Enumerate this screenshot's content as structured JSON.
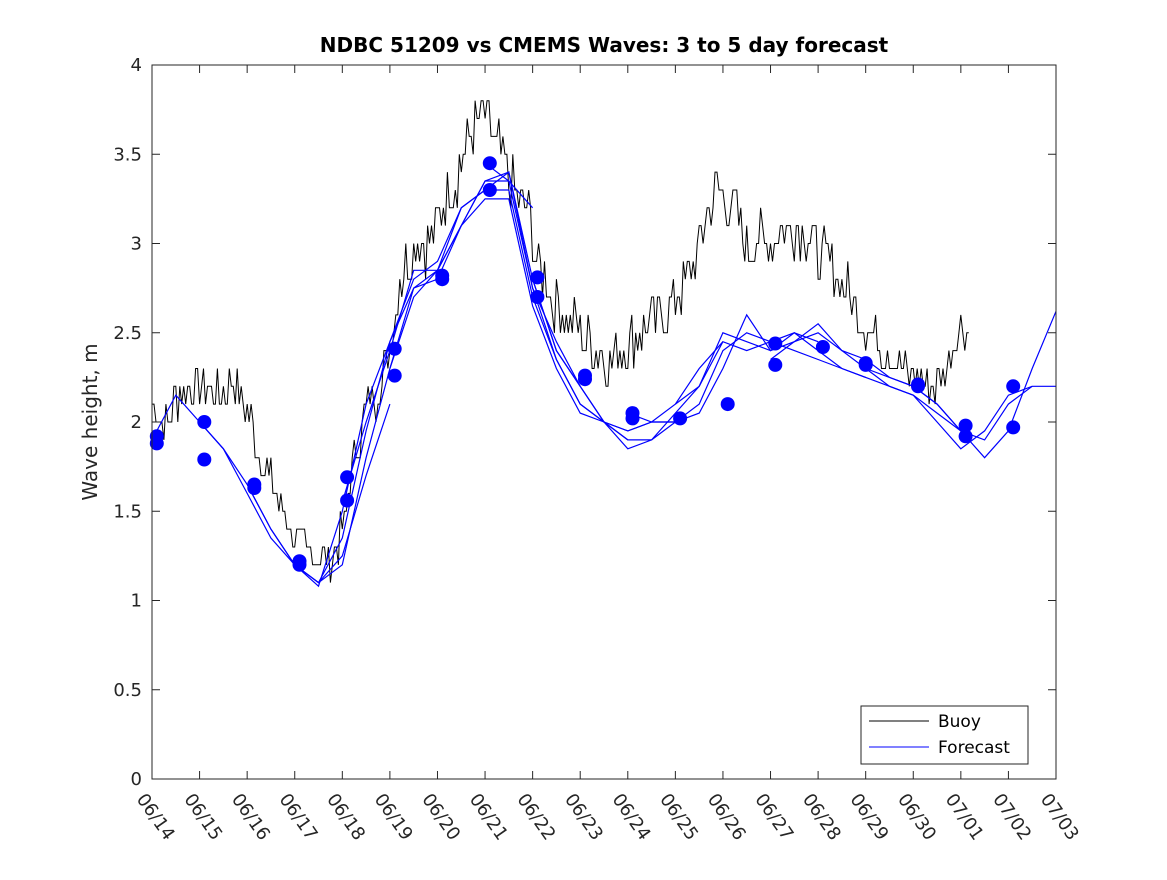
{
  "chart_data": {
    "type": "line",
    "title": "NDBC 51209 vs CMEMS Waves: 3 to 5 day forecast",
    "xlabel": "",
    "ylabel": "Wave height, m",
    "xlim": [
      "06/14",
      "07/03"
    ],
    "ylim": [
      0,
      4
    ],
    "x_tick_labels": [
      "06/14",
      "06/15",
      "06/16",
      "06/17",
      "06/18",
      "06/19",
      "06/20",
      "06/21",
      "06/22",
      "06/23",
      "06/24",
      "06/25",
      "06/26",
      "06/27",
      "06/28",
      "06/29",
      "06/30",
      "07/01",
      "07/02",
      "07/03"
    ],
    "y_ticks": [
      0,
      0.5,
      1,
      1.5,
      2,
      2.5,
      3,
      3.5,
      4
    ],
    "y_tick_labels": [
      "0",
      "0.5",
      "1",
      "1.5",
      "2",
      "2.5",
      "3",
      "3.5",
      "4"
    ],
    "grid": false,
    "legend": {
      "position": "bottom-right",
      "entries": [
        "Buoy",
        "Forecast"
      ]
    },
    "colors": {
      "buoy": "#000000",
      "forecast": "#0000ff"
    },
    "buoy_series": {
      "name": "Buoy",
      "x_day": [
        0.0,
        0.3,
        0.6,
        1.0,
        1.3,
        1.7,
        2.0,
        2.3,
        2.6,
        2.9,
        3.2,
        3.5,
        3.8,
        4.0,
        4.2,
        4.5,
        4.8,
        5.0,
        5.2,
        5.5,
        5.8,
        6.1,
        6.4,
        6.7,
        7.0,
        7.3,
        7.6,
        7.9,
        8.1,
        8.4,
        8.7,
        9.0,
        9.3,
        9.6,
        9.9,
        10.2,
        10.5,
        10.8,
        11.0,
        11.3,
        11.6,
        11.9,
        12.2,
        12.5,
        12.8,
        13.1,
        13.4,
        13.7,
        14.0,
        14.3,
        14.6,
        14.9,
        15.2,
        15.5,
        15.8,
        16.1,
        16.4,
        16.7,
        16.9,
        17.2,
        17.5,
        17.8,
        18.0,
        18.3
      ],
      "y": [
        2.1,
        2.0,
        2.2,
        2.2,
        2.15,
        2.2,
        2.1,
        1.8,
        1.6,
        1.4,
        1.3,
        1.25,
        1.25,
        1.4,
        1.7,
        2.1,
        2.2,
        2.4,
        2.8,
        3.0,
        3.0,
        3.2,
        3.4,
        3.6,
        3.7,
        3.5,
        3.3,
        3.2,
        2.9,
        2.7,
        2.6,
        2.5,
        2.4,
        2.35,
        2.4,
        2.5,
        2.55,
        2.6,
        2.7,
        2.8,
        3.1,
        3.3,
        3.2,
        3.0,
        3.0,
        3.05,
        3.1,
        3.1,
        2.95,
        2.85,
        2.75,
        2.6,
        2.5,
        2.4,
        2.3,
        2.25,
        2.2,
        2.3,
        2.5,
        2.55,
        null,
        null,
        null,
        null
      ],
      "amplitude": 0.12
    },
    "forecast_series": [
      {
        "name": "Forecast",
        "x_day": [
          0.0,
          0.5,
          1.0,
          1.5,
          2.0,
          2.5,
          3.0,
          3.5,
          4.0,
          4.5,
          5.0
        ],
        "y": [
          1.9,
          2.15,
          2.0,
          1.85,
          1.6,
          1.35,
          1.2,
          1.1,
          1.25,
          1.7,
          2.1
        ]
      },
      {
        "name": "",
        "x_day": [
          1.0,
          1.5,
          2.0,
          2.5,
          3.0,
          3.5,
          4.0,
          4.5,
          5.0,
          5.5,
          6.0,
          6.5,
          7.0,
          7.5,
          8.0
        ],
        "y": [
          2.0,
          1.85,
          1.65,
          1.4,
          1.2,
          1.1,
          1.2,
          1.8,
          2.3,
          2.75,
          2.85,
          3.1,
          3.35,
          3.35,
          3.2
        ]
      },
      {
        "name": "",
        "x_day": [
          2.0,
          2.5,
          3.0,
          3.5,
          4.0,
          4.5,
          5.0,
          5.5,
          6.0,
          6.5,
          7.0,
          7.5,
          8.0,
          8.5,
          9.0
        ],
        "y": [
          1.65,
          1.4,
          1.2,
          1.1,
          1.35,
          1.95,
          2.45,
          2.75,
          2.8,
          3.1,
          3.35,
          3.4,
          2.8,
          2.4,
          2.2
        ]
      },
      {
        "name": "",
        "x_day": [
          3.0,
          3.5,
          4.0,
          4.5,
          5.0,
          5.5,
          6.0,
          6.5,
          7.0,
          7.5,
          8.0,
          8.5,
          9.0,
          9.5,
          10.0
        ],
        "y": [
          1.2,
          1.08,
          1.5,
          2.1,
          2.45,
          2.8,
          2.9,
          3.2,
          3.3,
          3.4,
          2.75,
          2.45,
          2.2,
          2.0,
          1.9
        ]
      },
      {
        "name": "",
        "x_day": [
          4.0,
          4.5,
          5.0,
          5.5,
          6.0,
          6.5,
          7.0,
          7.5,
          8.0,
          8.5,
          9.0,
          9.5,
          10.0,
          10.5,
          11.0
        ],
        "y": [
          1.55,
          2.0,
          2.4,
          2.85,
          2.85,
          3.2,
          3.3,
          3.3,
          2.7,
          2.35,
          2.1,
          2.0,
          1.95,
          2.0,
          2.0
        ]
      },
      {
        "name": "",
        "x_day": [
          5.0,
          5.5,
          6.0,
          6.5,
          7.0,
          7.5,
          8.0,
          8.5,
          9.0,
          9.5,
          10.0,
          10.5,
          11.0,
          11.5,
          12.0
        ],
        "y": [
          2.3,
          2.7,
          2.85,
          3.1,
          3.25,
          3.25,
          2.65,
          2.3,
          2.05,
          2.0,
          1.95,
          2.0,
          2.1,
          2.3,
          2.45
        ]
      },
      {
        "name": "",
        "x_day": [
          7.0,
          7.5,
          8.0,
          8.5,
          9.0,
          9.5,
          10.0,
          10.5,
          11.0,
          11.5,
          12.0,
          12.5,
          13.0,
          13.5,
          14.0
        ],
        "y": [
          3.45,
          3.35,
          2.75,
          2.35,
          2.1,
          2.0,
          1.9,
          1.9,
          2.0,
          2.1,
          2.4,
          2.5,
          2.45,
          2.5,
          2.45
        ]
      },
      {
        "name": "",
        "x_day": [
          8.0,
          8.5,
          9.0,
          9.5,
          10.0,
          10.5,
          11.0,
          11.5,
          12.0,
          12.5,
          13.0,
          13.5,
          14.0,
          14.5,
          15.0
        ],
        "y": [
          2.8,
          2.4,
          2.2,
          2.0,
          1.85,
          1.9,
          2.05,
          2.2,
          2.5,
          2.45,
          2.4,
          2.5,
          2.4,
          2.3,
          2.25
        ]
      },
      {
        "name": "",
        "x_day": [
          10.0,
          10.5,
          11.0,
          11.5,
          12.0,
          12.5,
          13.0,
          13.5,
          14.0,
          14.5,
          15.0,
          15.5,
          16.0,
          16.5,
          17.0
        ],
        "y": [
          2.05,
          2.0,
          2.0,
          2.05,
          2.3,
          2.6,
          2.4,
          2.45,
          2.55,
          2.4,
          2.3,
          2.2,
          2.15,
          2.05,
          1.95
        ]
      },
      {
        "name": "",
        "x_day": [
          11.0,
          11.5,
          12.0,
          12.5,
          13.0,
          13.5,
          14.0,
          14.5,
          15.0,
          15.5,
          16.0,
          16.5,
          17.0,
          17.5,
          18.0,
          18.5
        ],
        "y": [
          2.1,
          2.2,
          2.45,
          2.4,
          2.45,
          2.4,
          2.35,
          2.3,
          2.25,
          2.2,
          2.15,
          2.0,
          1.85,
          1.95,
          2.15,
          2.2
        ]
      },
      {
        "name": "",
        "x_day": [
          13.0,
          13.5,
          14.0,
          14.5,
          15.0,
          15.5,
          16.0,
          16.5,
          17.0,
          17.5,
          18.0,
          18.5,
          19.0
        ],
        "y": [
          2.35,
          2.45,
          2.5,
          2.4,
          2.35,
          2.25,
          2.2,
          2.1,
          1.95,
          1.9,
          2.1,
          2.2,
          2.2
        ]
      },
      {
        "name": "",
        "x_day": [
          15.0,
          15.5,
          16.0,
          16.5,
          17.0,
          17.5,
          18.0,
          18.5,
          19.0
        ],
        "y": [
          2.3,
          2.25,
          2.2,
          2.1,
          1.95,
          1.8,
          1.95,
          2.3,
          2.62
        ]
      }
    ],
    "forecast_markers": {
      "x_day": [
        0.1,
        0.1,
        1.1,
        1.1,
        2.15,
        2.15,
        3.1,
        3.1,
        4.1,
        4.1,
        5.1,
        5.1,
        6.1,
        6.1,
        7.1,
        7.1,
        8.1,
        8.1,
        9.1,
        9.1,
        10.1,
        10.1,
        11.1,
        12.1,
        13.1,
        13.1,
        14.1,
        15.0,
        15.0,
        16.1,
        16.1,
        17.1,
        17.1,
        18.1,
        18.1
      ],
      "y": [
        1.92,
        1.88,
        2.0,
        1.79,
        1.65,
        1.63,
        1.22,
        1.2,
        1.69,
        1.56,
        2.41,
        2.26,
        2.82,
        2.8,
        3.45,
        3.3,
        2.81,
        2.7,
        2.26,
        2.24,
        2.05,
        2.02,
        2.02,
        2.1,
        2.44,
        2.32,
        2.42,
        2.33,
        2.32,
        2.21,
        2.2,
        1.98,
        1.92,
        2.2,
        1.97
      ]
    }
  }
}
